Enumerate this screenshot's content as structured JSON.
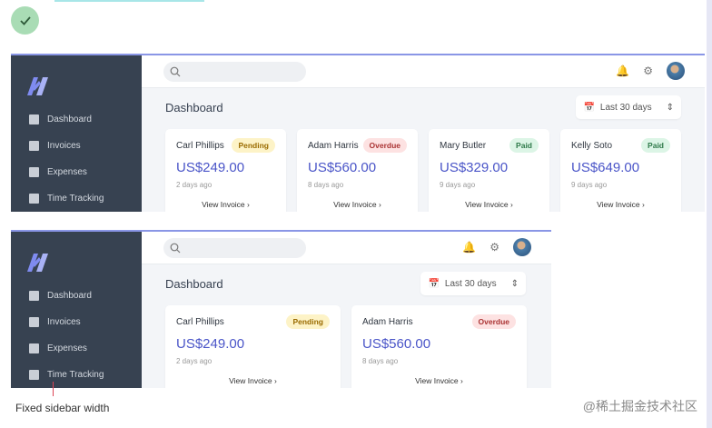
{
  "status_icon": "check-icon",
  "caption": "Fixed sidebar width",
  "watermark": "@稀土掘金技术社区",
  "colors": {
    "sidebar": "#374251",
    "accent": "#4a55c8",
    "pending": "#fdf3c7",
    "overdue": "#fde2e2",
    "paid": "#dcf5e6"
  },
  "sidebar": {
    "items": [
      {
        "label": "Dashboard",
        "icon": "dashboard-icon"
      },
      {
        "label": "Invoices",
        "icon": "invoice-icon"
      },
      {
        "label": "Expenses",
        "icon": "expenses-icon"
      },
      {
        "label": "Time Tracking",
        "icon": "hourglass-icon"
      }
    ]
  },
  "header": {
    "search_placeholder": "",
    "icons": [
      "bell-icon",
      "gear-icon",
      "avatar"
    ]
  },
  "main": {
    "title": "Dashboard",
    "date_range": "Last 30 days"
  },
  "invoices": [
    {
      "name": "Carl Phillips",
      "status": "Pending",
      "amount": "US$249.00",
      "ago": "2 days ago",
      "link": "View Invoice"
    },
    {
      "name": "Adam Harris",
      "status": "Overdue",
      "amount": "US$560.00",
      "ago": "8 days ago",
      "link": "View Invoice"
    },
    {
      "name": "Mary Butler",
      "status": "Paid",
      "amount": "US$329.00",
      "ago": "9 days ago",
      "link": "View Invoice"
    },
    {
      "name": "Kelly Soto",
      "status": "Paid",
      "amount": "US$649.00",
      "ago": "9 days ago",
      "link": "View Invoice"
    }
  ]
}
